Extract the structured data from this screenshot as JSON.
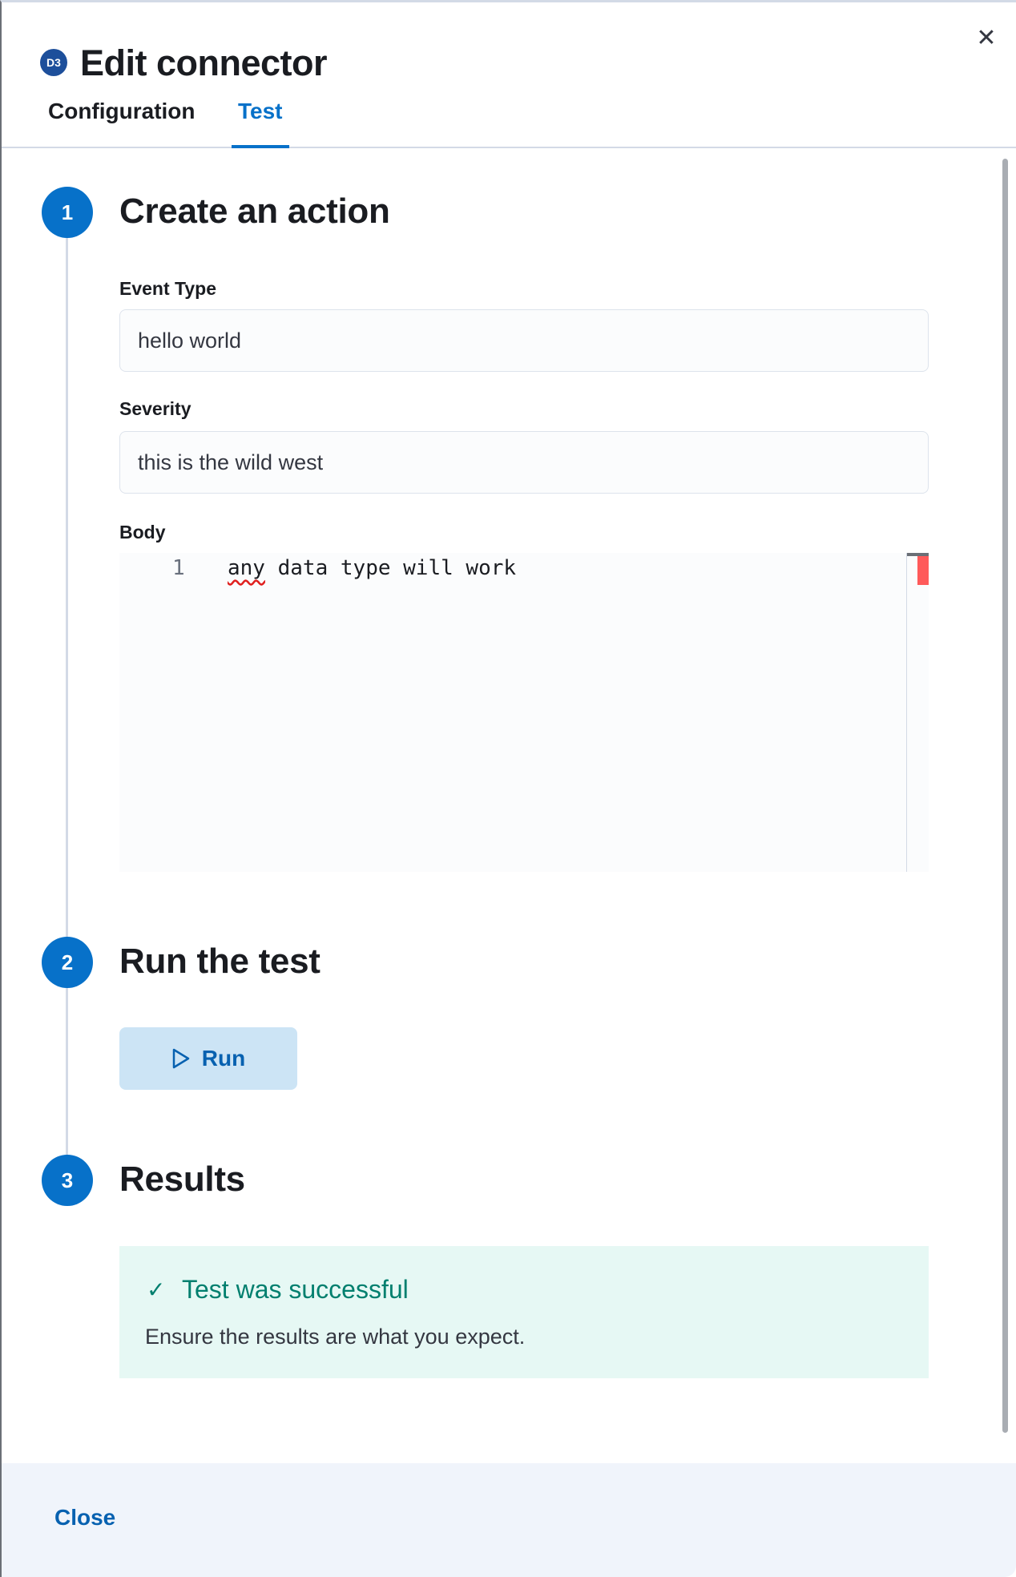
{
  "header": {
    "logo_text": "D3",
    "title": "Edit connector",
    "close_icon": "close-icon"
  },
  "tabs": [
    {
      "label": "Configuration",
      "active": false
    },
    {
      "label": "Test",
      "active": true
    }
  ],
  "steps": [
    {
      "number": "1",
      "title": "Create an action"
    },
    {
      "number": "2",
      "title": "Run the test"
    },
    {
      "number": "3",
      "title": "Results"
    }
  ],
  "form": {
    "event_type": {
      "label": "Event Type",
      "value": "hello world"
    },
    "severity": {
      "label": "Severity",
      "value": "this is the wild west"
    },
    "body": {
      "label": "Body",
      "line_number": "1",
      "code_first": "any",
      "code_rest": " data type will work"
    }
  },
  "run_button": {
    "label": "Run",
    "icon": "play-icon"
  },
  "result": {
    "title": "Test was successful",
    "message": "Ensure the results are what you expect.",
    "icon": "check-icon"
  },
  "footer": {
    "close_label": "Close"
  },
  "colors": {
    "accent": "#0771c9",
    "success": "#007f6e",
    "success_bg": "#e6f8f4"
  }
}
